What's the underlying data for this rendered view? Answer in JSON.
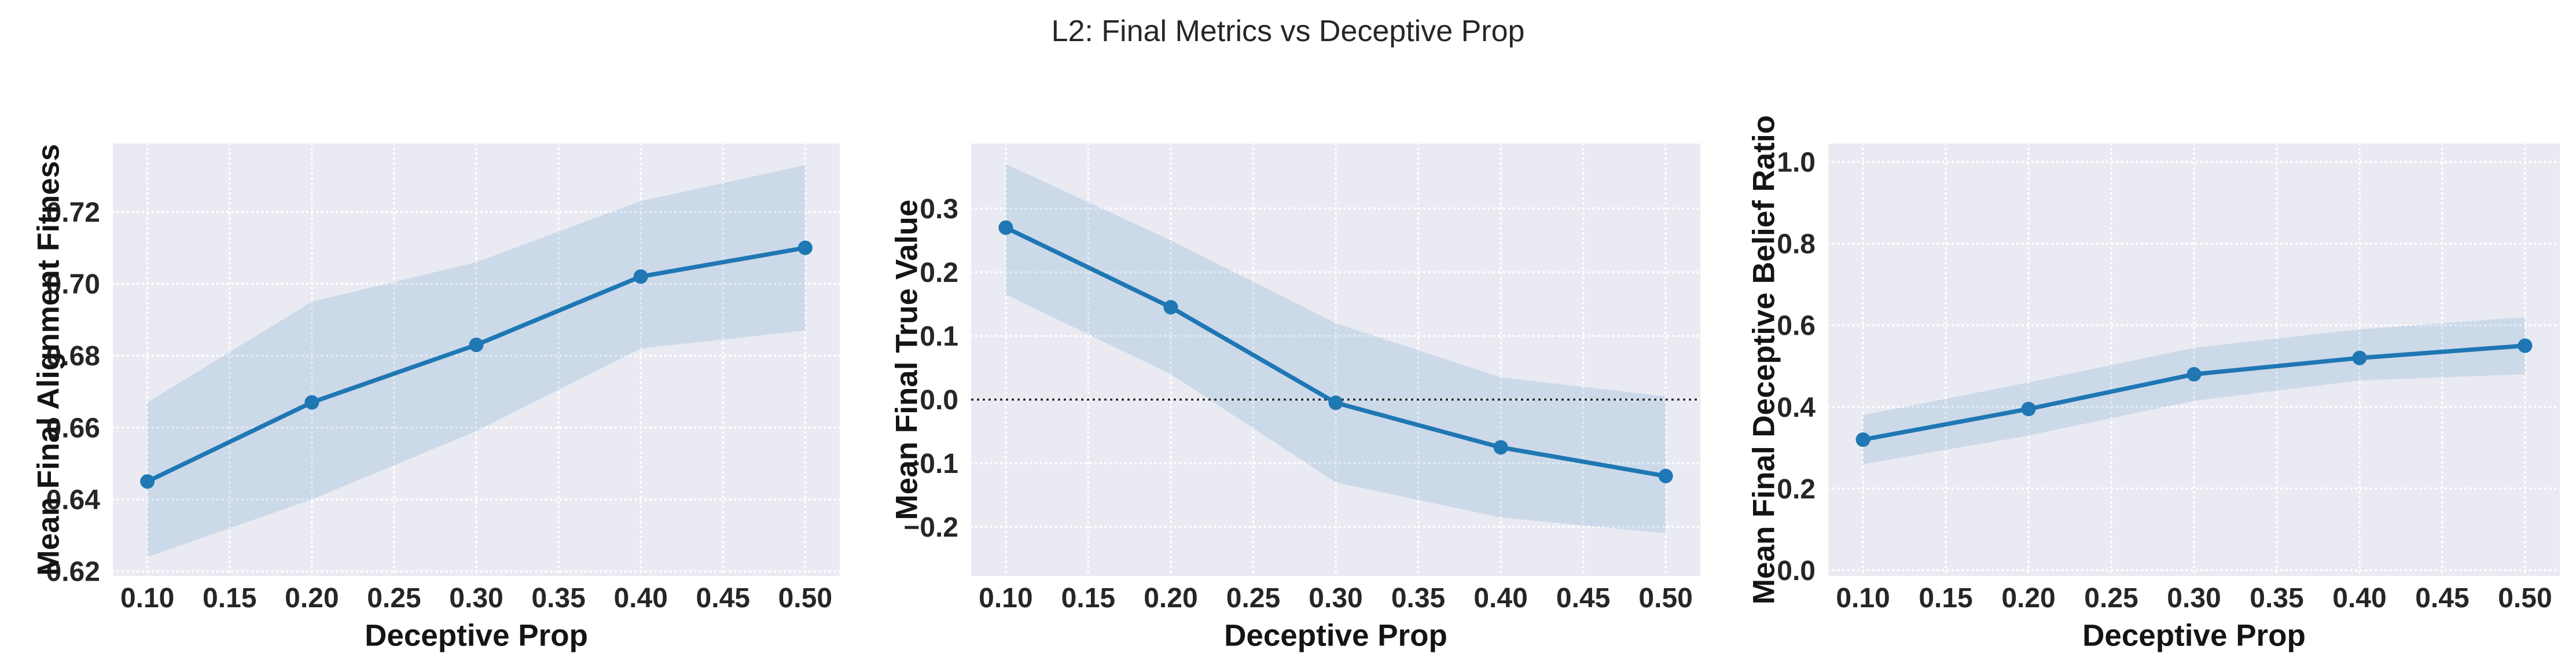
{
  "suptitle": "L2: Final Metrics vs Deceptive Prop",
  "colors": {
    "line": "#1f77b4",
    "band": "#1f77b4",
    "band_opacity": 0.15,
    "plot_background": "#eaeaf2",
    "grid": "#ffffff",
    "zero_line": "#2b2b2b",
    "tick_text": "#262626",
    "label_text": "#141414"
  },
  "chart_data": [
    {
      "type": "line",
      "xlabel": "Deceptive Prop",
      "ylabel": "Mean Final Alignment Fitness",
      "x": [
        0.1,
        0.2,
        0.3,
        0.4,
        0.5
      ],
      "series": [
        {
          "name": "mean_final_alignment_fitness",
          "values": [
            0.645,
            0.667,
            0.683,
            0.702,
            0.71
          ]
        }
      ],
      "band_low": [
        0.624,
        0.64,
        0.659,
        0.682,
        0.687
      ],
      "band_high": [
        0.667,
        0.695,
        0.706,
        0.723,
        0.733
      ],
      "xticks": {
        "values": [
          0.1,
          0.15,
          0.2,
          0.25,
          0.3,
          0.35,
          0.4,
          0.45,
          0.5
        ],
        "labels": [
          "0.10",
          "0.15",
          "0.20",
          "0.25",
          "0.30",
          "0.35",
          "0.40",
          "0.45",
          "0.50"
        ]
      },
      "yticks": {
        "values": [
          0.62,
          0.64,
          0.66,
          0.68,
          0.7,
          0.72
        ],
        "labels": [
          "0.62",
          "0.64",
          "0.66",
          "0.68",
          "0.70",
          "0.72"
        ]
      },
      "xlim": [
        0.079,
        0.521
      ],
      "ylim": [
        0.6187,
        0.739
      ],
      "zero_line": false,
      "grid": true,
      "legend": null
    },
    {
      "type": "line",
      "xlabel": "Deceptive Prop",
      "ylabel": "Mean Final True Value",
      "x": [
        0.1,
        0.2,
        0.3,
        0.4,
        0.5
      ],
      "series": [
        {
          "name": "mean_final_true_value",
          "values": [
            0.27,
            0.145,
            -0.005,
            -0.075,
            -0.12
          ]
        }
      ],
      "band_low": [
        0.165,
        0.04,
        -0.13,
        -0.185,
        -0.21
      ],
      "band_high": [
        0.37,
        0.25,
        0.12,
        0.035,
        0.005
      ],
      "xticks": {
        "values": [
          0.1,
          0.15,
          0.2,
          0.25,
          0.3,
          0.35,
          0.4,
          0.45,
          0.5
        ],
        "labels": [
          "0.10",
          "0.15",
          "0.20",
          "0.25",
          "0.30",
          "0.35",
          "0.40",
          "0.45",
          "0.50"
        ]
      },
      "yticks": {
        "values": [
          -0.2,
          -0.1,
          0.0,
          0.1,
          0.2,
          0.3
        ],
        "labels": [
          "−0.2",
          "−0.1",
          "0.0",
          "0.1",
          "0.2",
          "0.3"
        ]
      },
      "xlim": [
        0.079,
        0.521
      ],
      "ylim": [
        -0.277,
        0.402
      ],
      "zero_line": true,
      "grid": true,
      "legend": null
    },
    {
      "type": "line",
      "xlabel": "Deceptive Prop",
      "ylabel": "Mean Final Deceptive Belief Ratio",
      "x": [
        0.1,
        0.2,
        0.3,
        0.4,
        0.5
      ],
      "series": [
        {
          "name": "mean_final_deceptive_belief_ratio",
          "values": [
            0.32,
            0.395,
            0.48,
            0.52,
            0.55
          ]
        }
      ],
      "band_low": [
        0.26,
        0.33,
        0.415,
        0.465,
        0.48
      ],
      "band_high": [
        0.38,
        0.46,
        0.545,
        0.59,
        0.62
      ],
      "xticks": {
        "values": [
          0.1,
          0.15,
          0.2,
          0.25,
          0.3,
          0.35,
          0.4,
          0.45,
          0.5
        ],
        "labels": [
          "0.10",
          "0.15",
          "0.20",
          "0.25",
          "0.30",
          "0.35",
          "0.40",
          "0.45",
          "0.50"
        ]
      },
      "yticks": {
        "values": [
          0.0,
          0.2,
          0.4,
          0.6,
          0.8,
          1.0
        ],
        "labels": [
          "0.0",
          "0.2",
          "0.4",
          "0.6",
          "0.8",
          "1.0"
        ]
      },
      "xlim": [
        0.079,
        0.521
      ],
      "ylim": [
        -0.014,
        1.045
      ],
      "zero_line": false,
      "grid": true,
      "legend": null
    }
  ]
}
